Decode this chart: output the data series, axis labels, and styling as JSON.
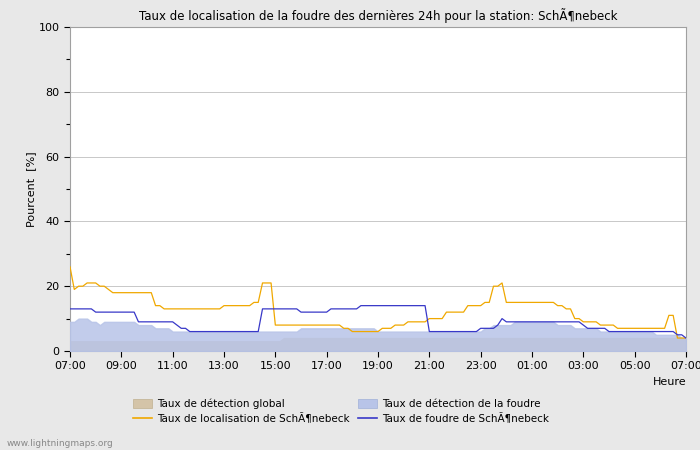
{
  "title": "Taux de localisation de la foudre des dernières 24h pour la station: SchÃ¶nebeck",
  "ylabel": "Pourcent  [%]",
  "xlabel": "Heure",
  "watermark": "www.lightningmaps.org",
  "ylim": [
    0,
    100
  ],
  "yticks": [
    0,
    20,
    40,
    60,
    80,
    100
  ],
  "xtick_labels": [
    "07:00",
    "09:00",
    "11:00",
    "13:00",
    "15:00",
    "17:00",
    "19:00",
    "21:00",
    "23:00",
    "01:00",
    "03:00",
    "05:00",
    "07:00"
  ],
  "background_color": "#e8e8e8",
  "plot_bg_color": "#ffffff",
  "n_points": 145,
  "global_detection_fill": [
    3,
    3,
    3,
    3,
    3,
    3,
    3,
    3,
    3,
    3,
    3,
    3,
    3,
    3,
    3,
    3,
    3,
    3,
    3,
    3,
    3,
    3,
    3,
    3,
    3,
    3,
    3,
    3,
    3,
    3,
    3,
    3,
    3,
    3,
    3,
    3,
    3,
    3,
    3,
    3,
    3,
    3,
    3,
    3,
    3,
    3,
    3,
    3,
    3,
    3,
    4,
    4,
    4,
    4,
    4,
    4,
    4,
    4,
    4,
    4,
    4,
    4,
    4,
    4,
    4,
    4,
    4,
    4,
    4,
    4,
    4,
    4,
    4,
    4,
    4,
    4,
    4,
    4,
    4,
    4,
    4,
    4,
    4,
    4,
    4,
    4,
    4,
    4,
    4,
    4,
    4,
    4,
    4,
    4,
    4,
    4,
    4,
    4,
    4,
    4,
    4,
    4,
    4,
    4,
    4,
    4,
    4,
    4,
    4,
    4,
    4,
    4,
    4,
    4,
    4,
    4,
    4,
    4,
    4,
    4,
    4,
    4,
    4,
    4,
    4,
    4,
    4,
    4,
    4,
    4,
    4,
    4,
    4,
    4,
    4,
    4,
    4,
    4,
    4,
    4,
    4,
    4,
    4,
    4,
    4
  ],
  "lightning_detection_fill": [
    9,
    9,
    10,
    10,
    10,
    9,
    9,
    8,
    9,
    9,
    9,
    9,
    9,
    9,
    9,
    9,
    8,
    8,
    8,
    8,
    7,
    7,
    7,
    7,
    6,
    6,
    6,
    6,
    6,
    6,
    6,
    6,
    6,
    6,
    6,
    6,
    6,
    6,
    6,
    6,
    6,
    6,
    6,
    6,
    6,
    6,
    6,
    6,
    6,
    6,
    6,
    6,
    6,
    6,
    7,
    7,
    7,
    7,
    7,
    7,
    7,
    7,
    7,
    7,
    7,
    7,
    7,
    7,
    7,
    7,
    7,
    7,
    6,
    6,
    6,
    6,
    6,
    6,
    6,
    6,
    6,
    6,
    6,
    6,
    6,
    6,
    6,
    6,
    6,
    6,
    6,
    6,
    6,
    6,
    6,
    6,
    6,
    7,
    7,
    8,
    8,
    8,
    8,
    8,
    9,
    9,
    9,
    9,
    9,
    9,
    9,
    9,
    9,
    9,
    8,
    8,
    8,
    8,
    7,
    7,
    7,
    7,
    7,
    7,
    6,
    6,
    6,
    6,
    6,
    6,
    6,
    6,
    6,
    6,
    6,
    6,
    6,
    5,
    5,
    5,
    5,
    5,
    5,
    4,
    4
  ],
  "localisation_schoenebeck": [
    26,
    19,
    20,
    20,
    21,
    21,
    21,
    20,
    20,
    19,
    18,
    18,
    18,
    18,
    18,
    18,
    18,
    18,
    18,
    18,
    14,
    14,
    13,
    13,
    13,
    13,
    13,
    13,
    13,
    13,
    13,
    13,
    13,
    13,
    13,
    13,
    14,
    14,
    14,
    14,
    14,
    14,
    14,
    15,
    15,
    21,
    21,
    21,
    8,
    8,
    8,
    8,
    8,
    8,
    8,
    8,
    8,
    8,
    8,
    8,
    8,
    8,
    8,
    8,
    7,
    7,
    6,
    6,
    6,
    6,
    6,
    6,
    6,
    7,
    7,
    7,
    8,
    8,
    8,
    9,
    9,
    9,
    9,
    9,
    10,
    10,
    10,
    10,
    12,
    12,
    12,
    12,
    12,
    14,
    14,
    14,
    14,
    15,
    15,
    20,
    20,
    21,
    15,
    15,
    15,
    15,
    15,
    15,
    15,
    15,
    15,
    15,
    15,
    15,
    14,
    14,
    13,
    13,
    10,
    10,
    9,
    9,
    9,
    9,
    8,
    8,
    8,
    8,
    7,
    7,
    7,
    7,
    7,
    7,
    7,
    7,
    7,
    7,
    7,
    7,
    11,
    11,
    4,
    4,
    4
  ],
  "foudre_schoenebeck": [
    13,
    13,
    13,
    13,
    13,
    13,
    12,
    12,
    12,
    12,
    12,
    12,
    12,
    12,
    12,
    12,
    9,
    9,
    9,
    9,
    9,
    9,
    9,
    9,
    9,
    8,
    7,
    7,
    6,
    6,
    6,
    6,
    6,
    6,
    6,
    6,
    6,
    6,
    6,
    6,
    6,
    6,
    6,
    6,
    6,
    13,
    13,
    13,
    13,
    13,
    13,
    13,
    13,
    13,
    12,
    12,
    12,
    12,
    12,
    12,
    12,
    13,
    13,
    13,
    13,
    13,
    13,
    13,
    14,
    14,
    14,
    14,
    14,
    14,
    14,
    14,
    14,
    14,
    14,
    14,
    14,
    14,
    14,
    14,
    6,
    6,
    6,
    6,
    6,
    6,
    6,
    6,
    6,
    6,
    6,
    6,
    7,
    7,
    7,
    7,
    8,
    10,
    9,
    9,
    9,
    9,
    9,
    9,
    9,
    9,
    9,
    9,
    9,
    9,
    9,
    9,
    9,
    9,
    9,
    9,
    8,
    7,
    7,
    7,
    7,
    7,
    6,
    6,
    6,
    6,
    6,
    6,
    6,
    6,
    6,
    6,
    6,
    6,
    6,
    6,
    6,
    6,
    5,
    5,
    4
  ]
}
